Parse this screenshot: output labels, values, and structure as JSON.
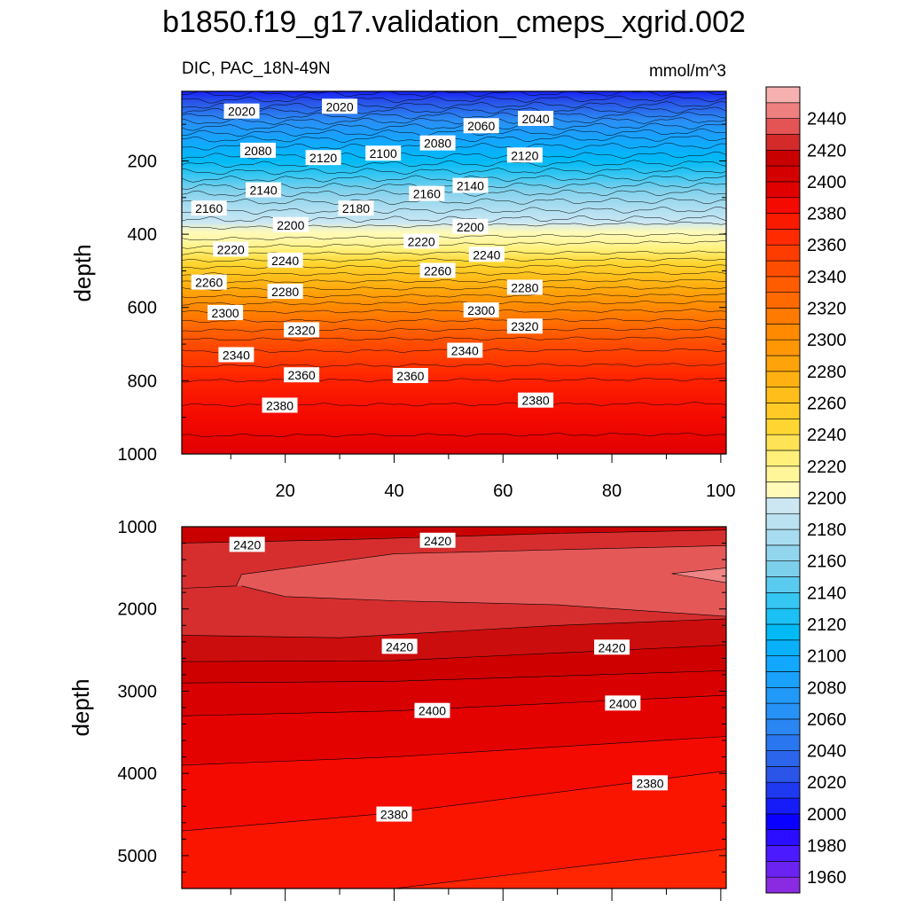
{
  "chart_data": {
    "type": "contour",
    "title": "b1850.f19_g17.validation_cmeps_xgrid.002",
    "subtitle_left": "DIC, PAC_18N-49N",
    "units": "mmol/m^3",
    "colorbar": {
      "levels": [
        1960,
        1970,
        1980,
        1990,
        2000,
        2010,
        2020,
        2030,
        2040,
        2050,
        2060,
        2070,
        2080,
        2090,
        2100,
        2110,
        2120,
        2130,
        2140,
        2150,
        2160,
        2170,
        2180,
        2190,
        2200,
        2210,
        2220,
        2230,
        2240,
        2250,
        2260,
        2270,
        2280,
        2290,
        2300,
        2310,
        2320,
        2330,
        2340,
        2350,
        2360,
        2370,
        2380,
        2390,
        2400,
        2410,
        2420,
        2430,
        2440,
        2450
      ],
      "tick_labels": [
        "1960",
        "1980",
        "2000",
        "2020",
        "2040",
        "2060",
        "2080",
        "2100",
        "2120",
        "2140",
        "2160",
        "2180",
        "2200",
        "2220",
        "2240",
        "2260",
        "2280",
        "2300",
        "2320",
        "2340",
        "2360",
        "2380",
        "2400",
        "2420",
        "2440"
      ]
    },
    "panels": [
      {
        "ylabel": "depth",
        "xlim": [
          1,
          101
        ],
        "ylim": [
          1000,
          10
        ],
        "x_ticks": [
          "20",
          "40",
          "60",
          "80",
          "100"
        ],
        "y_ticks": [
          "200",
          "400",
          "600",
          "800",
          "1000"
        ],
        "profile_depth": [
          10,
          50,
          100,
          150,
          200,
          250,
          300,
          350,
          380,
          420,
          500,
          600,
          700,
          800,
          900,
          1000
        ],
        "profile_value": [
          2005,
          2030,
          2065,
          2095,
          2115,
          2140,
          2165,
          2185,
          2199,
          2212,
          2255,
          2305,
          2345,
          2370,
          2385,
          2395
        ],
        "contour_labels": [
          {
            "text": "2020",
            "x": 12,
            "depth": 65
          },
          {
            "text": "2020",
            "x": 30,
            "depth": 52
          },
          {
            "text": "2040",
            "x": 66,
            "depth": 85
          },
          {
            "text": "2060",
            "x": 56,
            "depth": 105
          },
          {
            "text": "2080",
            "x": 15,
            "depth": 172
          },
          {
            "text": "2080",
            "x": 48,
            "depth": 152
          },
          {
            "text": "2100",
            "x": 38,
            "depth": 180
          },
          {
            "text": "2120",
            "x": 27,
            "depth": 192
          },
          {
            "text": "2120",
            "x": 64,
            "depth": 185
          },
          {
            "text": "2140",
            "x": 16,
            "depth": 280
          },
          {
            "text": "2140",
            "x": 54,
            "depth": 268
          },
          {
            "text": "2160",
            "x": 6,
            "depth": 330
          },
          {
            "text": "2160",
            "x": 46,
            "depth": 290
          },
          {
            "text": "2180",
            "x": 33,
            "depth": 330
          },
          {
            "text": "2200",
            "x": 21,
            "depth": 375
          },
          {
            "text": "2200",
            "x": 54,
            "depth": 380
          },
          {
            "text": "2220",
            "x": 10,
            "depth": 442
          },
          {
            "text": "2220",
            "x": 45,
            "depth": 420
          },
          {
            "text": "2240",
            "x": 20,
            "depth": 472
          },
          {
            "text": "2240",
            "x": 57,
            "depth": 456
          },
          {
            "text": "2260",
            "x": 6,
            "depth": 532
          },
          {
            "text": "2260",
            "x": 48,
            "depth": 500
          },
          {
            "text": "2280",
            "x": 20,
            "depth": 557
          },
          {
            "text": "2280",
            "x": 64,
            "depth": 546
          },
          {
            "text": "2300",
            "x": 9,
            "depth": 615
          },
          {
            "text": "2300",
            "x": 56,
            "depth": 608
          },
          {
            "text": "2320",
            "x": 23,
            "depth": 662
          },
          {
            "text": "2320",
            "x": 64,
            "depth": 652
          },
          {
            "text": "2340",
            "x": 11,
            "depth": 730
          },
          {
            "text": "2340",
            "x": 53,
            "depth": 718
          },
          {
            "text": "2360",
            "x": 23,
            "depth": 785
          },
          {
            "text": "2360",
            "x": 43,
            "depth": 787
          },
          {
            "text": "2380",
            "x": 19,
            "depth": 868
          },
          {
            "text": "2380",
            "x": 66,
            "depth": 854
          }
        ]
      },
      {
        "ylabel": "depth",
        "xlim": [
          1,
          101
        ],
        "ylim": [
          5400,
          1000
        ],
        "x_ticks": [],
        "y_ticks": [
          "1000",
          "2000",
          "3000",
          "4000",
          "5000"
        ],
        "contour_lines": [
          {
            "value": 2420,
            "points": [
              [
                1,
                1200
              ],
              [
                30,
                1160
              ],
              [
                70,
                1080
              ],
              [
                101,
                1040
              ]
            ]
          },
          {
            "value": 2430,
            "points": [
              [
                1,
                1750
              ],
              [
                11,
                1720
              ],
              [
                12,
                1580
              ],
              [
                40,
                1330
              ],
              [
                70,
                1280
              ],
              [
                101,
                1230
              ]
            ]
          },
          {
            "value": 2420,
            "points": [
              [
                1,
                2320
              ],
              [
                30,
                2350
              ],
              [
                70,
                2200
              ],
              [
                101,
                2120
              ]
            ]
          },
          {
            "value": 2420,
            "points": [
              [
                1,
                2640
              ],
              [
                40,
                2630
              ],
              [
                101,
                2440
              ]
            ]
          },
          {
            "value": 2410,
            "points": [
              [
                1,
                2900
              ],
              [
                40,
                2880
              ],
              [
                101,
                2750
              ]
            ]
          },
          {
            "value": 2400,
            "points": [
              [
                1,
                3300
              ],
              [
                40,
                3240
              ],
              [
                101,
                3050
              ]
            ]
          },
          {
            "value": 2390,
            "points": [
              [
                1,
                3900
              ],
              [
                40,
                3800
              ],
              [
                101,
                3550
              ]
            ]
          },
          {
            "value": 2380,
            "points": [
              [
                1,
                4700
              ],
              [
                40,
                4480
              ],
              [
                101,
                3970
              ]
            ]
          },
          {
            "value": 2370,
            "points": [
              [
                40,
                5400
              ],
              [
                101,
                4920
              ]
            ]
          }
        ],
        "contour_labels": [
          {
            "text": "2420",
            "x": 13,
            "depth": 1220
          },
          {
            "text": "2420",
            "x": 48,
            "depth": 1170
          },
          {
            "text": "2420",
            "x": 41,
            "depth": 2460
          },
          {
            "text": "2420",
            "x": 80,
            "depth": 2470
          },
          {
            "text": "2400",
            "x": 47,
            "depth": 3240
          },
          {
            "text": "2400",
            "x": 82,
            "depth": 3150
          },
          {
            "text": "2380",
            "x": 40,
            "depth": 4500
          },
          {
            "text": "2380",
            "x": 87,
            "depth": 4120
          }
        ]
      }
    ]
  }
}
